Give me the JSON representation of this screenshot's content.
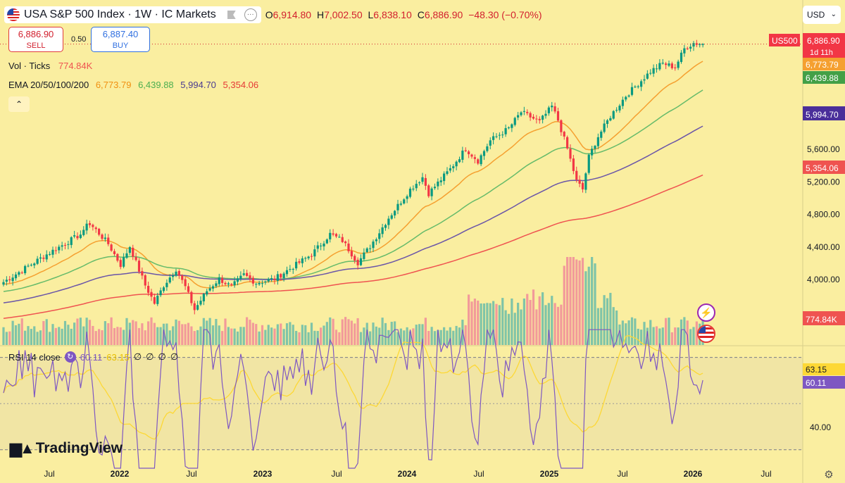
{
  "header": {
    "title": "USA S&P 500 Index · 1W · IC Markets",
    "ohlc": {
      "o_label": "O",
      "o": "6,914.80",
      "h_label": "H",
      "h": "7,002.50",
      "l_label": "L",
      "l": "6,838.10",
      "c_label": "C",
      "c": "6,886.90",
      "change": "−48.30 (−0.70%)"
    },
    "currency": "USD"
  },
  "trade": {
    "sell_price": "6,886.90",
    "sell_label": "SELL",
    "spread": "0.50",
    "buy_price": "6,887.40",
    "buy_label": "BUY"
  },
  "legend": {
    "vol_label": "Vol · Ticks",
    "vol_value": "774.84K",
    "ema_label": "EMA 20/50/100/200",
    "ema_values": [
      "6,773.79",
      "6,439.88",
      "5,994.70",
      "5,354.06"
    ],
    "rsi_label": "RSI 14 close",
    "rsi_value": "60.11",
    "rsi_ma_value": "63.15",
    "rsi_extra": [
      "∅",
      "∅",
      "∅",
      "∅"
    ]
  },
  "price_tags": {
    "symbol": "US500",
    "last": "6,886.90",
    "countdown": "1d 11h",
    "ema20": "6,773.79",
    "ema50": "6,439.88",
    "ema100": "5,994.70",
    "ema200": "5,354.06",
    "volume": "774.84K",
    "rsi_ma": "63.15",
    "rsi": "60.11"
  },
  "colors": {
    "background": "#faeea0",
    "up": "#089981",
    "down": "#f23645",
    "ema20": "#f5a030",
    "ema50": "#66bb6a",
    "ema100": "#6a55a8",
    "ema200": "#ef5350",
    "rsi": "#7e57c2",
    "rsi_ma": "#fdd835"
  },
  "branding": "TradingView",
  "chart_data": {
    "type": "candlestick",
    "timeframe": "1W",
    "price_axis_ticks": [
      4000,
      4400,
      4800,
      5200,
      5600
    ],
    "rsi_axis_ticks": [
      40
    ],
    "time_axis_labels": [
      "Jul",
      "2022",
      "Jul",
      "2023",
      "Jul",
      "2024",
      "Jul",
      "2025",
      "Jul",
      "2026",
      "Jul"
    ],
    "close_anchors": [
      {
        "t": 0,
        "p": 3960
      },
      {
        "t": 14,
        "p": 4300
      },
      {
        "t": 26,
        "p": 4570
      },
      {
        "t": 27,
        "p": 4700
      },
      {
        "t": 30,
        "p": 4600
      },
      {
        "t": 34,
        "p": 4430
      },
      {
        "t": 38,
        "p": 4170
      },
      {
        "t": 41,
        "p": 4400
      },
      {
        "t": 43,
        "p": 4200
      },
      {
        "t": 46,
        "p": 3920
      },
      {
        "t": 49,
        "p": 3700
      },
      {
        "t": 52,
        "p": 3920
      },
      {
        "t": 56,
        "p": 4120
      },
      {
        "t": 59,
        "p": 3900
      },
      {
        "t": 62,
        "p": 3620
      },
      {
        "t": 66,
        "p": 3850
      },
      {
        "t": 70,
        "p": 4000
      },
      {
        "t": 74,
        "p": 3900
      },
      {
        "t": 78,
        "p": 4050
      },
      {
        "t": 82,
        "p": 3950
      },
      {
        "t": 88,
        "p": 4000
      },
      {
        "t": 94,
        "p": 4150
      },
      {
        "t": 100,
        "p": 4300
      },
      {
        "t": 106,
        "p": 4550
      },
      {
        "t": 110,
        "p": 4470
      },
      {
        "t": 115,
        "p": 4200
      },
      {
        "t": 119,
        "p": 4400
      },
      {
        "t": 125,
        "p": 4750
      },
      {
        "t": 132,
        "p": 5100
      },
      {
        "t": 136,
        "p": 5250
      },
      {
        "t": 138,
        "p": 5050
      },
      {
        "t": 145,
        "p": 5350
      },
      {
        "t": 150,
        "p": 5600
      },
      {
        "t": 154,
        "p": 5450
      },
      {
        "t": 158,
        "p": 5700
      },
      {
        "t": 164,
        "p": 5850
      },
      {
        "t": 168,
        "p": 6050
      },
      {
        "t": 174,
        "p": 5930
      },
      {
        "t": 178,
        "p": 6120
      },
      {
        "t": 180,
        "p": 5950
      },
      {
        "t": 183,
        "p": 5600
      },
      {
        "t": 186,
        "p": 5200
      },
      {
        "t": 188,
        "p": 5100
      },
      {
        "t": 190,
        "p": 5500
      },
      {
        "t": 193,
        "p": 5750
      },
      {
        "t": 197,
        "p": 6000
      },
      {
        "t": 202,
        "p": 6250
      },
      {
        "t": 210,
        "p": 6550
      },
      {
        "t": 214,
        "p": 6650
      },
      {
        "t": 218,
        "p": 6600
      },
      {
        "t": 221,
        "p": 6830
      },
      {
        "t": 224,
        "p": 6900
      },
      {
        "t": 227,
        "p": 6887
      }
    ],
    "ema_periods": [
      20,
      50,
      100,
      200
    ],
    "rsi_period": 14,
    "last_values": {
      "close": 6886.9,
      "ema20": 6773.79,
      "ema50": 6439.88,
      "ema100": 5994.7,
      "ema200": 5354.06,
      "rsi": 60.11,
      "rsi_ma": 63.15,
      "volume": "774.84K"
    }
  }
}
